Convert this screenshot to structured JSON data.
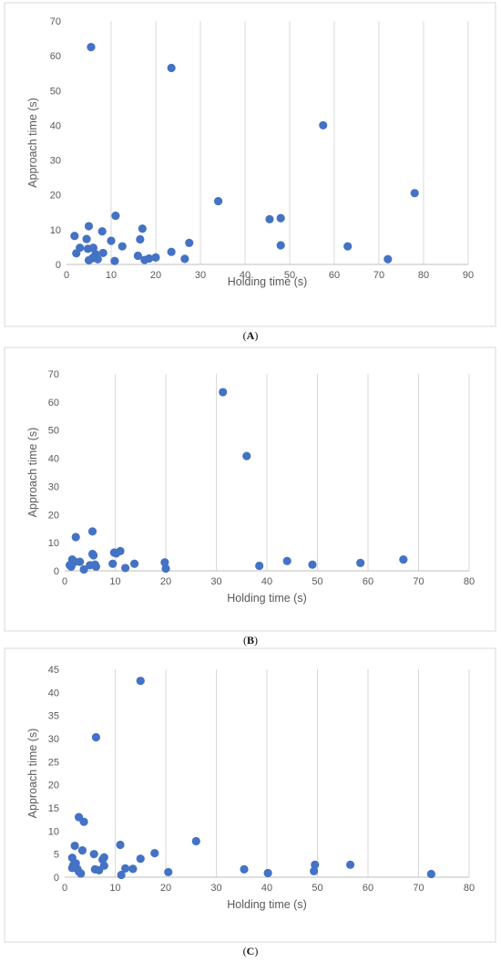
{
  "chart_data": [
    {
      "type": "scatter",
      "panel_label": "A",
      "xlabel": "Holding time (s)",
      "ylabel": "Approach time (s)",
      "xlim": [
        0,
        90
      ],
      "ylim": [
        0,
        70
      ],
      "x_ticks": [
        0,
        10,
        20,
        30,
        40,
        50,
        60,
        70,
        80,
        90
      ],
      "y_ticks": [
        0,
        10,
        20,
        30,
        40,
        50,
        60,
        70
      ],
      "grid": "vertical",
      "marker_color": "#4472C4",
      "points": [
        {
          "x": 5.5,
          "y": 62.5
        },
        {
          "x": 23.5,
          "y": 56.5
        },
        {
          "x": 57.5,
          "y": 40.0
        },
        {
          "x": 78.0,
          "y": 20.5
        },
        {
          "x": 34.0,
          "y": 18.2
        },
        {
          "x": 11.0,
          "y": 14.0
        },
        {
          "x": 45.5,
          "y": 13.0
        },
        {
          "x": 48.0,
          "y": 13.3
        },
        {
          "x": 5.0,
          "y": 11.0
        },
        {
          "x": 17.0,
          "y": 10.3
        },
        {
          "x": 8.0,
          "y": 9.5
        },
        {
          "x": 1.8,
          "y": 8.2
        },
        {
          "x": 4.5,
          "y": 7.3
        },
        {
          "x": 10.0,
          "y": 6.8
        },
        {
          "x": 16.5,
          "y": 7.2
        },
        {
          "x": 27.5,
          "y": 6.2
        },
        {
          "x": 48.0,
          "y": 5.5
        },
        {
          "x": 63.0,
          "y": 5.2
        },
        {
          "x": 3.0,
          "y": 4.8
        },
        {
          "x": 6.0,
          "y": 4.8
        },
        {
          "x": 4.8,
          "y": 4.5
        },
        {
          "x": 12.5,
          "y": 5.2
        },
        {
          "x": 2.2,
          "y": 3.2
        },
        {
          "x": 6.5,
          "y": 3.0
        },
        {
          "x": 8.2,
          "y": 3.3
        },
        {
          "x": 23.5,
          "y": 3.6
        },
        {
          "x": 16.0,
          "y": 2.5
        },
        {
          "x": 7.0,
          "y": 1.5
        },
        {
          "x": 5.0,
          "y": 1.2
        },
        {
          "x": 5.8,
          "y": 1.8
        },
        {
          "x": 10.8,
          "y": 1.0
        },
        {
          "x": 17.5,
          "y": 1.3
        },
        {
          "x": 18.5,
          "y": 1.7
        },
        {
          "x": 20.0,
          "y": 2.0
        },
        {
          "x": 26.5,
          "y": 1.6
        },
        {
          "x": 72.0,
          "y": 1.5
        }
      ]
    },
    {
      "type": "scatter",
      "panel_label": "B",
      "xlabel": "Holding time (s)",
      "ylabel": "Approach time (s)",
      "xlim": [
        0,
        80
      ],
      "ylim": [
        0,
        70
      ],
      "x_ticks": [
        0,
        10,
        20,
        30,
        40,
        50,
        60,
        70,
        80
      ],
      "y_ticks": [
        0,
        10,
        20,
        30,
        40,
        50,
        60,
        70
      ],
      "grid": "vertical",
      "marker_color": "#4472C4",
      "points": [
        {
          "x": 31.3,
          "y": 63.5
        },
        {
          "x": 36.0,
          "y": 40.8
        },
        {
          "x": 5.5,
          "y": 14.0
        },
        {
          "x": 2.2,
          "y": 12.0
        },
        {
          "x": 11.0,
          "y": 7.0
        },
        {
          "x": 9.8,
          "y": 6.5
        },
        {
          "x": 10.2,
          "y": 6.2
        },
        {
          "x": 5.5,
          "y": 6.0
        },
        {
          "x": 5.7,
          "y": 5.5
        },
        {
          "x": 1.5,
          "y": 4.0
        },
        {
          "x": 67.0,
          "y": 4.0
        },
        {
          "x": 44.0,
          "y": 3.5
        },
        {
          "x": 2.0,
          "y": 3.2
        },
        {
          "x": 3.0,
          "y": 3.2
        },
        {
          "x": 19.8,
          "y": 3.0
        },
        {
          "x": 58.5,
          "y": 2.8
        },
        {
          "x": 13.8,
          "y": 2.5
        },
        {
          "x": 9.5,
          "y": 2.5
        },
        {
          "x": 6.0,
          "y": 2.2
        },
        {
          "x": 5.0,
          "y": 2.0
        },
        {
          "x": 49.0,
          "y": 2.2
        },
        {
          "x": 1.0,
          "y": 2.0
        },
        {
          "x": 38.5,
          "y": 1.8
        },
        {
          "x": 1.3,
          "y": 1.5
        },
        {
          "x": 6.2,
          "y": 1.5
        },
        {
          "x": 12.0,
          "y": 1.0
        },
        {
          "x": 20.0,
          "y": 0.8
        },
        {
          "x": 3.8,
          "y": 0.5
        }
      ]
    },
    {
      "type": "scatter",
      "panel_label": "C",
      "xlabel": "Holding time (s)",
      "ylabel": "Approach time (s)",
      "xlim": [
        0,
        80
      ],
      "ylim": [
        0,
        45
      ],
      "x_ticks": [
        0,
        10,
        20,
        30,
        40,
        50,
        60,
        70,
        80
      ],
      "y_ticks": [
        0,
        5,
        10,
        15,
        20,
        25,
        30,
        35,
        40,
        45
      ],
      "grid": "vertical",
      "marker_color": "#4472C4",
      "points": [
        {
          "x": 15.0,
          "y": 42.5
        },
        {
          "x": 6.2,
          "y": 30.3
        },
        {
          "x": 2.8,
          "y": 13.0
        },
        {
          "x": 3.8,
          "y": 12.0
        },
        {
          "x": 26.0,
          "y": 7.8
        },
        {
          "x": 11.0,
          "y": 7.0
        },
        {
          "x": 2.0,
          "y": 6.8
        },
        {
          "x": 3.5,
          "y": 5.8
        },
        {
          "x": 17.8,
          "y": 5.2
        },
        {
          "x": 5.8,
          "y": 5.0
        },
        {
          "x": 1.5,
          "y": 4.2
        },
        {
          "x": 7.8,
          "y": 4.3
        },
        {
          "x": 15.0,
          "y": 4.0
        },
        {
          "x": 7.5,
          "y": 3.8
        },
        {
          "x": 2.2,
          "y": 3.0
        },
        {
          "x": 1.7,
          "y": 2.6
        },
        {
          "x": 49.5,
          "y": 2.7
        },
        {
          "x": 56.5,
          "y": 2.7
        },
        {
          "x": 7.8,
          "y": 2.5
        },
        {
          "x": 1.5,
          "y": 2.0
        },
        {
          "x": 2.5,
          "y": 1.8
        },
        {
          "x": 12.0,
          "y": 1.9
        },
        {
          "x": 13.5,
          "y": 1.8
        },
        {
          "x": 6.0,
          "y": 1.7
        },
        {
          "x": 6.8,
          "y": 1.5
        },
        {
          "x": 35.5,
          "y": 1.7
        },
        {
          "x": 2.8,
          "y": 1.2
        },
        {
          "x": 3.2,
          "y": 0.8
        },
        {
          "x": 20.5,
          "y": 1.1
        },
        {
          "x": 40.2,
          "y": 0.9
        },
        {
          "x": 49.3,
          "y": 1.3
        },
        {
          "x": 72.5,
          "y": 0.7
        },
        {
          "x": 11.2,
          "y": 0.5
        }
      ]
    }
  ]
}
